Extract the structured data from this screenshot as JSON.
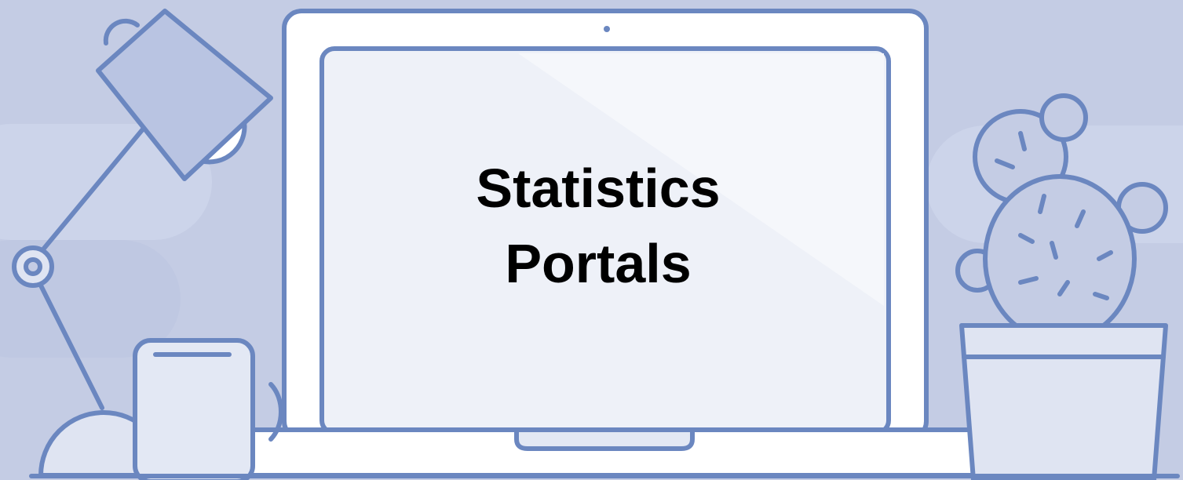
{
  "title": {
    "lines": [
      "Statistics",
      "Portals"
    ]
  }
}
